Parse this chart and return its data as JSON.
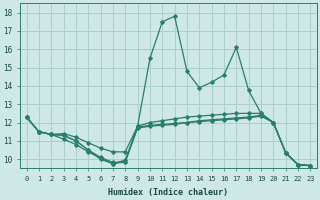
{
  "xlabel": "Humidex (Indice chaleur)",
  "xlim": [
    -0.5,
    23.5
  ],
  "ylim": [
    9.5,
    18.5
  ],
  "yticks": [
    10,
    11,
    12,
    13,
    14,
    15,
    16,
    17,
    18
  ],
  "xticks": [
    0,
    1,
    2,
    3,
    4,
    5,
    6,
    7,
    8,
    9,
    10,
    11,
    12,
    13,
    14,
    15,
    16,
    17,
    18,
    19,
    20,
    21,
    22,
    23
  ],
  "line_color": "#2a7d6e",
  "bg_color": "#cde8e5",
  "grid_color": "#aacfcc",
  "lines": [
    {
      "x": [
        0,
        1,
        2,
        3,
        4,
        5,
        6,
        7,
        8,
        9,
        10,
        11,
        12,
        13,
        14,
        15,
        16,
        17,
        18,
        19,
        20,
        21,
        22,
        23
      ],
      "y": [
        12.3,
        11.5,
        11.35,
        11.3,
        11.0,
        10.5,
        10.1,
        9.82,
        9.85,
        11.8,
        15.5,
        17.5,
        17.8,
        14.8,
        13.9,
        14.2,
        14.6,
        16.1,
        13.75,
        12.5,
        12.0,
        10.35,
        9.7,
        9.65
      ]
    },
    {
      "x": [
        0,
        1,
        2,
        3,
        4,
        5,
        6,
        7,
        8,
        9,
        10,
        11,
        12,
        13,
        14,
        15,
        16,
        17,
        18,
        19,
        20,
        21,
        22,
        23
      ],
      "y": [
        12.3,
        11.5,
        11.35,
        11.4,
        11.2,
        10.9,
        10.6,
        10.4,
        10.4,
        11.8,
        12.0,
        12.1,
        12.2,
        12.3,
        12.35,
        12.4,
        12.45,
        12.5,
        12.5,
        12.5,
        12.0,
        10.35,
        9.7,
        9.65
      ]
    },
    {
      "x": [
        0,
        1,
        2,
        3,
        4,
        5,
        6,
        7,
        8,
        9,
        10,
        11,
        12,
        13,
        14,
        15,
        16,
        17,
        18,
        19,
        20,
        21,
        22,
        23
      ],
      "y": [
        12.3,
        11.5,
        11.35,
        11.1,
        10.8,
        10.4,
        10.05,
        9.75,
        9.95,
        11.75,
        11.85,
        11.9,
        11.95,
        12.0,
        12.1,
        12.15,
        12.2,
        12.25,
        12.3,
        12.4,
        12.0,
        10.35,
        9.7,
        9.65
      ]
    },
    {
      "x": [
        0,
        1,
        2,
        3,
        4,
        5,
        6,
        7,
        8,
        9,
        10,
        11,
        12,
        13,
        14,
        15,
        16,
        17,
        18,
        19,
        20,
        21,
        22,
        23
      ],
      "y": [
        12.3,
        11.5,
        11.35,
        11.3,
        11.0,
        10.5,
        10.0,
        9.75,
        9.85,
        11.7,
        11.8,
        11.85,
        11.9,
        12.0,
        12.05,
        12.1,
        12.15,
        12.2,
        12.25,
        12.35,
        12.0,
        10.35,
        9.7,
        9.65
      ]
    }
  ]
}
